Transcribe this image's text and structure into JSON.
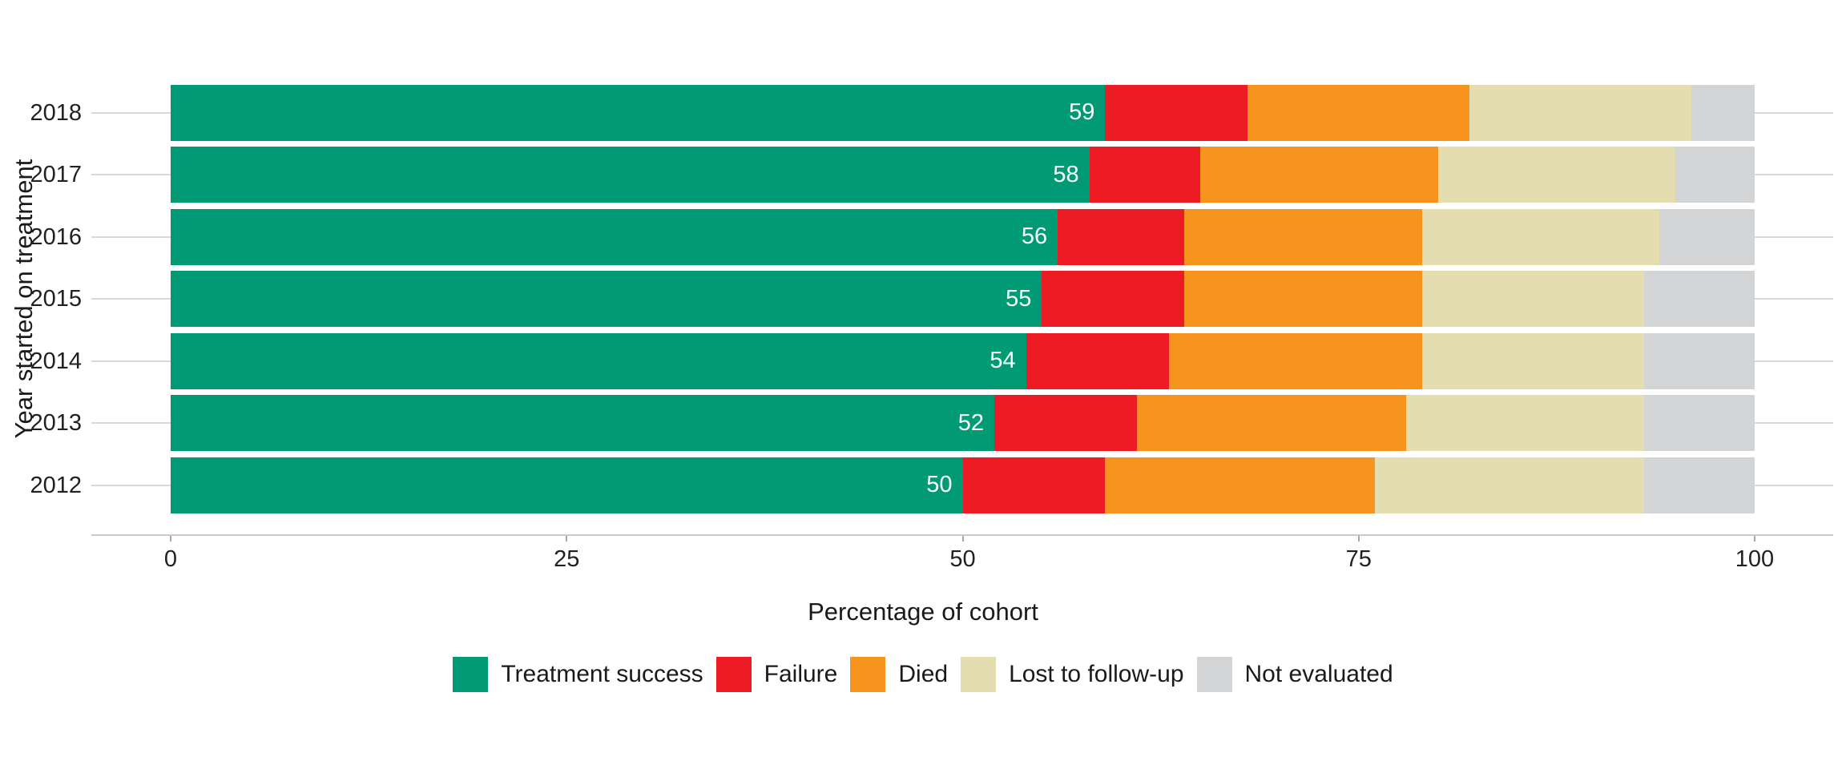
{
  "chart_data": {
    "type": "bar",
    "orientation": "horizontal",
    "stacked": true,
    "title": "",
    "xlabel": "Percentage of cohort",
    "ylabel": "Year started on treatment",
    "xlim": [
      0,
      100
    ],
    "x_ticks": [
      "0",
      "25",
      "50",
      "75",
      "100"
    ],
    "grid": "horizontal-rows-only",
    "legend_position": "bottom",
    "categories": [
      "2018",
      "2017",
      "2016",
      "2015",
      "2014",
      "2013",
      "2012"
    ],
    "series": [
      {
        "name": "Treatment success",
        "color": "#009B74",
        "values": [
          59,
          58,
          56,
          55,
          54,
          52,
          50
        ]
      },
      {
        "name": "Failure",
        "color": "#ED1C24",
        "values": [
          9,
          7,
          8,
          9,
          9,
          9,
          9
        ]
      },
      {
        "name": "Died",
        "color": "#F7941E",
        "values": [
          14,
          15,
          15,
          15,
          16,
          17,
          17
        ]
      },
      {
        "name": "Lost to follow-up",
        "color": "#E3DDB0",
        "values": [
          14,
          15,
          15,
          14,
          14,
          15,
          17
        ]
      },
      {
        "name": "Not evaluated",
        "color": "#D2D4D6",
        "values": [
          4,
          5,
          6,
          7,
          7,
          7,
          7
        ]
      }
    ],
    "bar_value_labels": [
      "59",
      "58",
      "56",
      "55",
      "54",
      "52",
      "50"
    ],
    "bar_value_label_series": "Treatment success",
    "bar_value_label_color": "#FFFFFF"
  },
  "colors": {
    "background": "#FFFFFF",
    "gridline": "#D8D8D8",
    "axis_line": "#C9C9C9",
    "tick_mark": "#A6A6A6",
    "tick_text": "#212121",
    "axis_title_text": "#1A1A1A"
  }
}
